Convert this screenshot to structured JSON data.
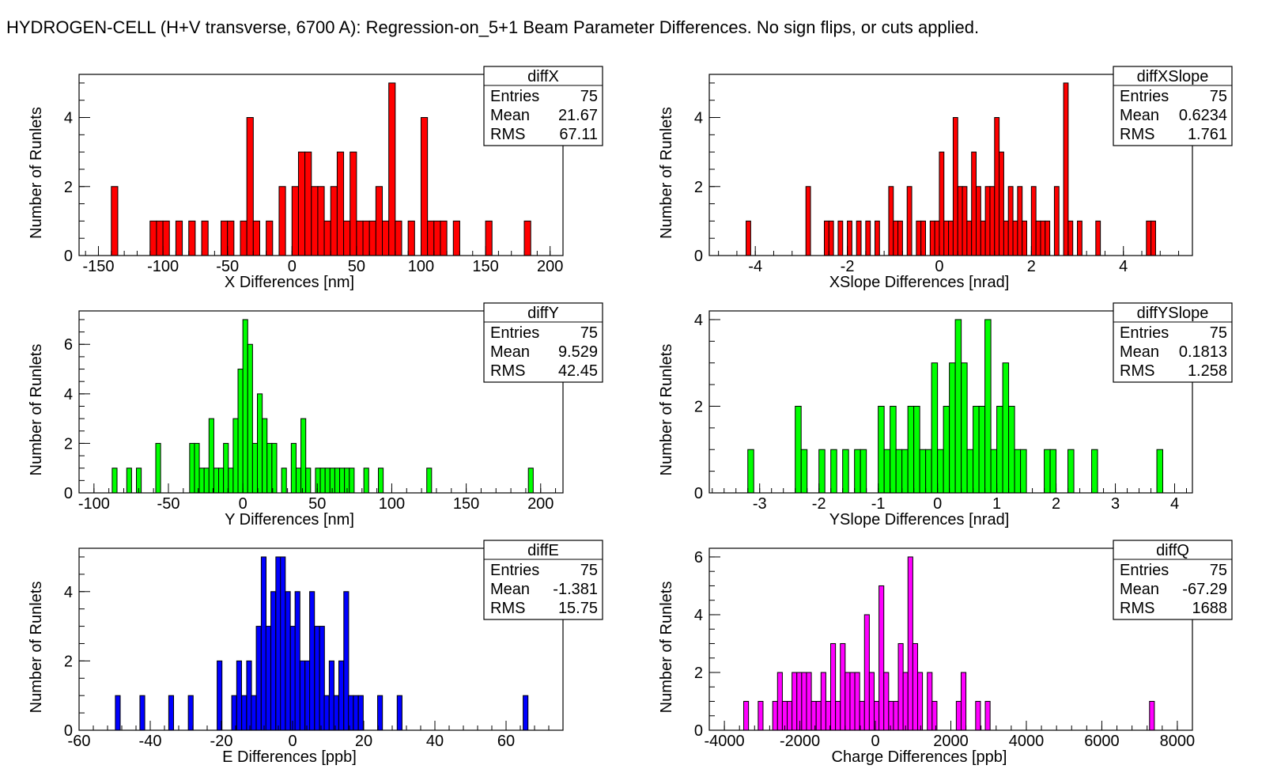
{
  "page_title": "HYDROGEN-CELL (H+V transverse, 6700 A): Regression-on_5+1 Beam Parameter Differences. No sign flips, or cuts applied.",
  "chart_data": [
    {
      "type": "bar",
      "id": "diffX",
      "color": "#ff0000",
      "xlabel": "X Differences [nm]",
      "ylabel": "Number of Runlets",
      "xlim": [
        -165,
        210
      ],
      "ylim": [
        0,
        5.25
      ],
      "xticks": [
        -150,
        -100,
        -50,
        0,
        50,
        100,
        150,
        200
      ],
      "yticks": [
        0,
        2,
        4
      ],
      "binwidth": 5,
      "stats": {
        "name": "diffX",
        "entries_label": "Entries",
        "entries": "75",
        "mean_label": "Mean",
        "mean": "21.67",
        "rms_label": "RMS",
        "rms": "67.11"
      },
      "bins": [
        {
          "x": -140,
          "y": 2
        },
        {
          "x": -110,
          "y": 1
        },
        {
          "x": -105,
          "y": 1
        },
        {
          "x": -100,
          "y": 1
        },
        {
          "x": -90,
          "y": 1
        },
        {
          "x": -80,
          "y": 1
        },
        {
          "x": -70,
          "y": 1
        },
        {
          "x": -55,
          "y": 1
        },
        {
          "x": -50,
          "y": 1
        },
        {
          "x": -40,
          "y": 1
        },
        {
          "x": -35,
          "y": 4
        },
        {
          "x": -30,
          "y": 1
        },
        {
          "x": -20,
          "y": 1
        },
        {
          "x": -10,
          "y": 2
        },
        {
          "x": 0,
          "y": 2
        },
        {
          "x": 5,
          "y": 3
        },
        {
          "x": 10,
          "y": 3
        },
        {
          "x": 15,
          "y": 2
        },
        {
          "x": 20,
          "y": 2
        },
        {
          "x": 25,
          "y": 1
        },
        {
          "x": 30,
          "y": 2
        },
        {
          "x": 35,
          "y": 3
        },
        {
          "x": 40,
          "y": 1
        },
        {
          "x": 45,
          "y": 3
        },
        {
          "x": 50,
          "y": 1
        },
        {
          "x": 55,
          "y": 1
        },
        {
          "x": 60,
          "y": 1
        },
        {
          "x": 65,
          "y": 2
        },
        {
          "x": 70,
          "y": 1
        },
        {
          "x": 75,
          "y": 5
        },
        {
          "x": 80,
          "y": 1
        },
        {
          "x": 90,
          "y": 1
        },
        {
          "x": 100,
          "y": 4
        },
        {
          "x": 105,
          "y": 1
        },
        {
          "x": 110,
          "y": 1
        },
        {
          "x": 115,
          "y": 1
        },
        {
          "x": 125,
          "y": 1
        },
        {
          "x": 150,
          "y": 1
        },
        {
          "x": 180,
          "y": 1
        }
      ]
    },
    {
      "type": "bar",
      "id": "diffXSlope",
      "color": "#ff0000",
      "xlabel": "XSlope Differences [nrad]",
      "ylabel": "Number of Runlets",
      "xlim": [
        -5,
        5.5
      ],
      "ylim": [
        0,
        5.25
      ],
      "xticks": [
        -4,
        -2,
        0,
        2,
        4
      ],
      "yticks": [
        0,
        2,
        4
      ],
      "binwidth": 0.1,
      "stats": {
        "name": "diffXSlope",
        "entries_label": "Entries",
        "entries": "75",
        "mean_label": "Mean",
        "mean": "0.6234",
        "rms_label": "RMS",
        "rms": "1.761"
      },
      "bins": [
        {
          "x": -4.2,
          "y": 1
        },
        {
          "x": -2.9,
          "y": 2
        },
        {
          "x": -2.5,
          "y": 1
        },
        {
          "x": -2.4,
          "y": 1
        },
        {
          "x": -2.2,
          "y": 1
        },
        {
          "x": -2.0,
          "y": 1
        },
        {
          "x": -1.8,
          "y": 1
        },
        {
          "x": -1.6,
          "y": 1
        },
        {
          "x": -1.4,
          "y": 1
        },
        {
          "x": -1.1,
          "y": 2
        },
        {
          "x": -1.0,
          "y": 1
        },
        {
          "x": -0.9,
          "y": 1
        },
        {
          "x": -0.7,
          "y": 2
        },
        {
          "x": -0.5,
          "y": 1
        },
        {
          "x": -0.4,
          "y": 1
        },
        {
          "x": -0.2,
          "y": 1
        },
        {
          "x": -0.1,
          "y": 1
        },
        {
          "x": 0,
          "y": 3
        },
        {
          "x": 0.1,
          "y": 1
        },
        {
          "x": 0.2,
          "y": 1
        },
        {
          "x": 0.3,
          "y": 4
        },
        {
          "x": 0.4,
          "y": 2
        },
        {
          "x": 0.5,
          "y": 2
        },
        {
          "x": 0.6,
          "y": 1
        },
        {
          "x": 0.7,
          "y": 3
        },
        {
          "x": 0.8,
          "y": 2
        },
        {
          "x": 0.9,
          "y": 1
        },
        {
          "x": 1.0,
          "y": 2
        },
        {
          "x": 1.1,
          "y": 2
        },
        {
          "x": 1.2,
          "y": 4
        },
        {
          "x": 1.3,
          "y": 3
        },
        {
          "x": 1.4,
          "y": 1
        },
        {
          "x": 1.5,
          "y": 2
        },
        {
          "x": 1.6,
          "y": 1
        },
        {
          "x": 1.7,
          "y": 2
        },
        {
          "x": 1.8,
          "y": 1
        },
        {
          "x": 2.0,
          "y": 2
        },
        {
          "x": 2.1,
          "y": 1
        },
        {
          "x": 2.2,
          "y": 1
        },
        {
          "x": 2.3,
          "y": 1
        },
        {
          "x": 2.5,
          "y": 2
        },
        {
          "x": 2.7,
          "y": 5
        },
        {
          "x": 2.8,
          "y": 1
        },
        {
          "x": 3.0,
          "y": 1
        },
        {
          "x": 3.4,
          "y": 1
        },
        {
          "x": 4.5,
          "y": 1
        },
        {
          "x": 4.6,
          "y": 1
        }
      ]
    },
    {
      "type": "bar",
      "id": "diffY",
      "color": "#00ff00",
      "xlabel": "Y Differences [nm]",
      "ylabel": "Number of Runlets",
      "xlim": [
        -110,
        215
      ],
      "ylim": [
        0,
        7.35
      ],
      "xticks": [
        -100,
        -50,
        0,
        50,
        100,
        150,
        200
      ],
      "yticks": [
        0,
        2,
        4,
        6
      ],
      "binwidth": 3.25,
      "stats": {
        "name": "diffY",
        "entries_label": "Entries",
        "entries": "75",
        "mean_label": "Mean",
        "mean": "9.529",
        "rms_label": "RMS",
        "rms": "42.45"
      },
      "bins": [
        {
          "x": -87.75,
          "y": 1
        },
        {
          "x": -78,
          "y": 1
        },
        {
          "x": -71.5,
          "y": 1
        },
        {
          "x": -58.5,
          "y": 2
        },
        {
          "x": -35.75,
          "y": 2
        },
        {
          "x": -32.5,
          "y": 2
        },
        {
          "x": -29.25,
          "y": 1
        },
        {
          "x": -26,
          "y": 1
        },
        {
          "x": -22.75,
          "y": 3
        },
        {
          "x": -19.5,
          "y": 1
        },
        {
          "x": -16.25,
          "y": 1
        },
        {
          "x": -13,
          "y": 2
        },
        {
          "x": -9.75,
          "y": 1
        },
        {
          "x": -6.5,
          "y": 3
        },
        {
          "x": -3.25,
          "y": 5
        },
        {
          "x": 0,
          "y": 7
        },
        {
          "x": 3.25,
          "y": 6
        },
        {
          "x": 6.5,
          "y": 2
        },
        {
          "x": 9.75,
          "y": 4
        },
        {
          "x": 13,
          "y": 3
        },
        {
          "x": 16.25,
          "y": 2
        },
        {
          "x": 19.5,
          "y": 2
        },
        {
          "x": 26,
          "y": 1
        },
        {
          "x": 32.5,
          "y": 2
        },
        {
          "x": 35.75,
          "y": 1
        },
        {
          "x": 39,
          "y": 3
        },
        {
          "x": 42.25,
          "y": 1
        },
        {
          "x": 48.75,
          "y": 1
        },
        {
          "x": 52,
          "y": 1
        },
        {
          "x": 55.25,
          "y": 1
        },
        {
          "x": 58.5,
          "y": 1
        },
        {
          "x": 61.75,
          "y": 1
        },
        {
          "x": 65,
          "y": 1
        },
        {
          "x": 68.25,
          "y": 1
        },
        {
          "x": 71.5,
          "y": 1
        },
        {
          "x": 81.25,
          "y": 1
        },
        {
          "x": 91,
          "y": 1
        },
        {
          "x": 123.5,
          "y": 1
        },
        {
          "x": 191.75,
          "y": 1
        }
      ]
    },
    {
      "type": "bar",
      "id": "diffYSlope",
      "color": "#00ff00",
      "xlabel": "YSlope Differences [nrad]",
      "ylabel": "Number of Runlets",
      "xlim": [
        -3.85,
        4.3
      ],
      "ylim": [
        0,
        4.2
      ],
      "xticks": [
        -3,
        -2,
        -1,
        0,
        1,
        2,
        3,
        4
      ],
      "yticks": [
        0,
        2,
        4
      ],
      "binwidth": 0.1,
      "stats": {
        "name": "diffYSlope",
        "entries_label": "Entries",
        "entries": "75",
        "mean_label": "Mean",
        "mean": "0.1813",
        "rms_label": "RMS",
        "rms": "1.258"
      },
      "bins": [
        {
          "x": -3.2,
          "y": 1
        },
        {
          "x": -2.4,
          "y": 2
        },
        {
          "x": -2.3,
          "y": 1
        },
        {
          "x": -2.0,
          "y": 1
        },
        {
          "x": -1.8,
          "y": 1
        },
        {
          "x": -1.6,
          "y": 1
        },
        {
          "x": -1.4,
          "y": 1
        },
        {
          "x": -1.3,
          "y": 1
        },
        {
          "x": -1.0,
          "y": 2
        },
        {
          "x": -0.9,
          "y": 1
        },
        {
          "x": -0.8,
          "y": 2
        },
        {
          "x": -0.7,
          "y": 1
        },
        {
          "x": -0.6,
          "y": 1
        },
        {
          "x": -0.5,
          "y": 2
        },
        {
          "x": -0.4,
          "y": 2
        },
        {
          "x": -0.3,
          "y": 1
        },
        {
          "x": -0.2,
          "y": 1
        },
        {
          "x": -0.1,
          "y": 3
        },
        {
          "x": 0,
          "y": 1
        },
        {
          "x": 0.1,
          "y": 2
        },
        {
          "x": 0.2,
          "y": 3
        },
        {
          "x": 0.3,
          "y": 4
        },
        {
          "x": 0.4,
          "y": 3
        },
        {
          "x": 0.5,
          "y": 1
        },
        {
          "x": 0.6,
          "y": 2
        },
        {
          "x": 0.7,
          "y": 2
        },
        {
          "x": 0.8,
          "y": 4
        },
        {
          "x": 0.9,
          "y": 1
        },
        {
          "x": 1.0,
          "y": 2
        },
        {
          "x": 1.1,
          "y": 3
        },
        {
          "x": 1.2,
          "y": 2
        },
        {
          "x": 1.3,
          "y": 1
        },
        {
          "x": 1.4,
          "y": 1
        },
        {
          "x": 1.8,
          "y": 1
        },
        {
          "x": 1.9,
          "y": 1
        },
        {
          "x": 2.2,
          "y": 1
        },
        {
          "x": 2.6,
          "y": 1
        },
        {
          "x": 3.7,
          "y": 1
        }
      ]
    },
    {
      "type": "bar",
      "id": "diffE",
      "color": "#0000ff",
      "xlabel": "E Differences [ppb]",
      "ylabel": "Number of Runlets",
      "xlim": [
        -60,
        76
      ],
      "ylim": [
        0,
        5.25
      ],
      "xticks": [
        -60,
        -40,
        -20,
        0,
        20,
        40,
        60
      ],
      "yticks": [
        0,
        2,
        4
      ],
      "binwidth": 1.36,
      "stats": {
        "name": "diffE",
        "entries_label": "Entries",
        "entries": "75",
        "mean_label": "Mean",
        "mean": "-1.381",
        "rms_label": "RMS",
        "rms": "15.75"
      },
      "bins": [
        {
          "x": -49.8,
          "y": 1
        },
        {
          "x": -42.9,
          "y": 1
        },
        {
          "x": -34.8,
          "y": 1
        },
        {
          "x": -29.3,
          "y": 1
        },
        {
          "x": -21.2,
          "y": 2
        },
        {
          "x": -17.1,
          "y": 1
        },
        {
          "x": -15.7,
          "y": 2
        },
        {
          "x": -14.3,
          "y": 1
        },
        {
          "x": -12.9,
          "y": 2
        },
        {
          "x": -11.6,
          "y": 1
        },
        {
          "x": -10.2,
          "y": 3
        },
        {
          "x": -8.8,
          "y": 5
        },
        {
          "x": -7.5,
          "y": 3
        },
        {
          "x": -6.1,
          "y": 4
        },
        {
          "x": -4.7,
          "y": 5
        },
        {
          "x": -3.4,
          "y": 5
        },
        {
          "x": -2.0,
          "y": 4
        },
        {
          "x": -0.6,
          "y": 3
        },
        {
          "x": 0.7,
          "y": 4
        },
        {
          "x": 2.1,
          "y": 2
        },
        {
          "x": 3.5,
          "y": 2
        },
        {
          "x": 4.8,
          "y": 4
        },
        {
          "x": 6.2,
          "y": 3
        },
        {
          "x": 7.6,
          "y": 3
        },
        {
          "x": 8.9,
          "y": 1
        },
        {
          "x": 10.3,
          "y": 2
        },
        {
          "x": 11.6,
          "y": 1
        },
        {
          "x": 13.0,
          "y": 2
        },
        {
          "x": 14.4,
          "y": 4
        },
        {
          "x": 15.7,
          "y": 1
        },
        {
          "x": 17.1,
          "y": 1
        },
        {
          "x": 18.5,
          "y": 1
        },
        {
          "x": 23.9,
          "y": 1
        },
        {
          "x": 29.4,
          "y": 1
        },
        {
          "x": 64.8,
          "y": 1
        }
      ]
    },
    {
      "type": "bar",
      "id": "diffQ",
      "color": "#ff00ff",
      "xlabel": "Charge Differences [ppb]",
      "ylabel": "Number of Runlets",
      "xlim": [
        -4400,
        8400
      ],
      "ylim": [
        0,
        6.3
      ],
      "xticks": [
        -4000,
        -2000,
        0,
        2000,
        4000,
        6000,
        8000
      ],
      "yticks": [
        0,
        2,
        4,
        6
      ],
      "binwidth": 128,
      "stats": {
        "name": "diffQ",
        "entries_label": "Entries",
        "entries": "75",
        "mean_label": "Mean",
        "mean": "-67.29",
        "rms_label": "RMS",
        "rms": "1688"
      },
      "bins": [
        {
          "x": -3488,
          "y": 1
        },
        {
          "x": -3104,
          "y": 1
        },
        {
          "x": -2720,
          "y": 1
        },
        {
          "x": -2592,
          "y": 2
        },
        {
          "x": -2464,
          "y": 1
        },
        {
          "x": -2336,
          "y": 1
        },
        {
          "x": -2208,
          "y": 2
        },
        {
          "x": -2080,
          "y": 2
        },
        {
          "x": -1952,
          "y": 2
        },
        {
          "x": -1824,
          "y": 2
        },
        {
          "x": -1696,
          "y": 1
        },
        {
          "x": -1568,
          "y": 1
        },
        {
          "x": -1440,
          "y": 2
        },
        {
          "x": -1312,
          "y": 1
        },
        {
          "x": -1184,
          "y": 3
        },
        {
          "x": -1056,
          "y": 1
        },
        {
          "x": -928,
          "y": 3
        },
        {
          "x": -800,
          "y": 2
        },
        {
          "x": -672,
          "y": 2
        },
        {
          "x": -544,
          "y": 2
        },
        {
          "x": -416,
          "y": 1
        },
        {
          "x": -288,
          "y": 4
        },
        {
          "x": -160,
          "y": 2
        },
        {
          "x": -32,
          "y": 1
        },
        {
          "x": 96,
          "y": 5
        },
        {
          "x": 224,
          "y": 2
        },
        {
          "x": 352,
          "y": 1
        },
        {
          "x": 480,
          "y": 1
        },
        {
          "x": 608,
          "y": 3
        },
        {
          "x": 736,
          "y": 2
        },
        {
          "x": 864,
          "y": 6
        },
        {
          "x": 992,
          "y": 3
        },
        {
          "x": 1120,
          "y": 2
        },
        {
          "x": 1376,
          "y": 2
        },
        {
          "x": 1504,
          "y": 1
        },
        {
          "x": 2144,
          "y": 1
        },
        {
          "x": 2272,
          "y": 2
        },
        {
          "x": 2656,
          "y": 1
        },
        {
          "x": 2912,
          "y": 1
        },
        {
          "x": 7264,
          "y": 1
        }
      ]
    }
  ]
}
